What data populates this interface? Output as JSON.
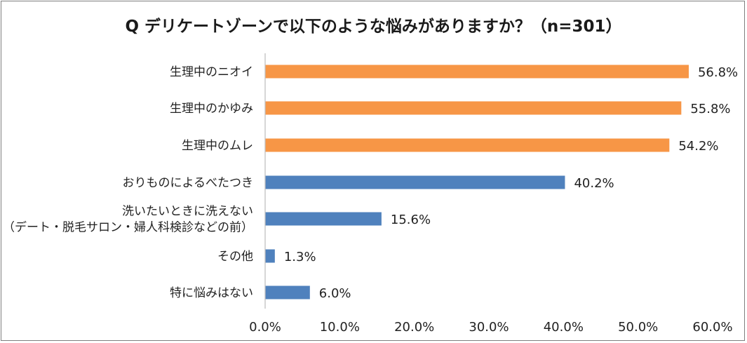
{
  "chart_data": {
    "type": "bar",
    "orientation": "horizontal",
    "title": "Q デリケートゾーンで以下のような悩みがありますか？（n=301）",
    "categories": [
      [
        "生理中のニオイ"
      ],
      [
        "生理中のかゆみ"
      ],
      [
        "生理中のムレ"
      ],
      [
        "おりものによるべたつき"
      ],
      [
        "洗いたいときに洗えない",
        "（デート・脱毛サロン・婦人科検診などの前）"
      ],
      [
        "その他"
      ],
      [
        "特に悩みはない"
      ]
    ],
    "values": [
      56.8,
      55.8,
      54.2,
      40.2,
      15.6,
      1.3,
      6.0
    ],
    "value_labels": [
      "56.8%",
      "55.8%",
      "54.2%",
      "40.2%",
      "15.6%",
      "1.3%",
      "6.0%"
    ],
    "bar_colors": [
      "#f79646",
      "#f79646",
      "#f79646",
      "#4f81bd",
      "#4f81bd",
      "#4f81bd",
      "#4f81bd"
    ],
    "xlim": [
      0,
      60
    ],
    "x_ticks": [
      0,
      10,
      20,
      30,
      40,
      50,
      60
    ],
    "x_tick_labels": [
      "0.0%",
      "10.0%",
      "20.0%",
      "30.0%",
      "40.0%",
      "50.0%",
      "60.0%"
    ],
    "grid": false,
    "legend": "none"
  }
}
